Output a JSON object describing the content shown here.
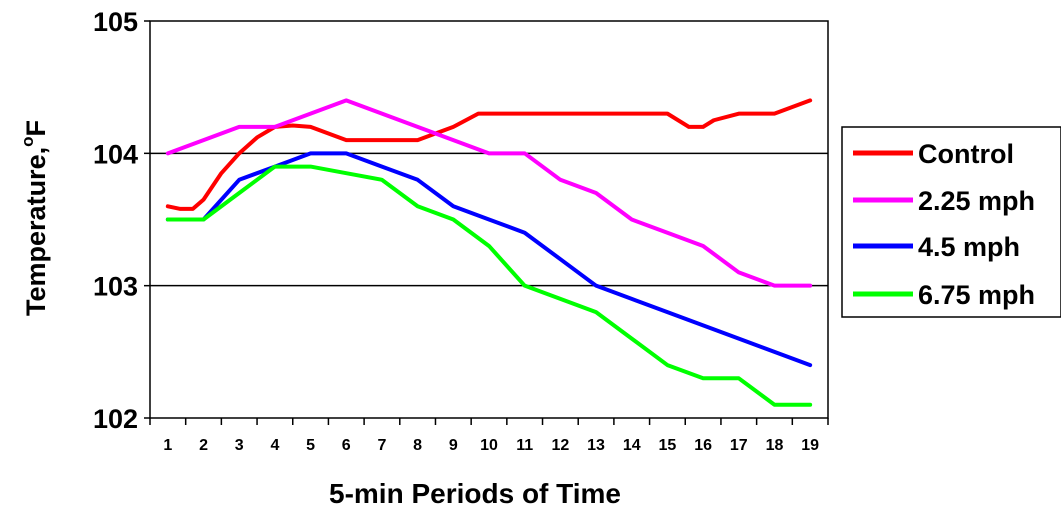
{
  "chart_data": {
    "type": "line",
    "title": "",
    "xlabel": "5-min Periods of Time",
    "ylabel": "Temperature,",
    "ylabel_unit": "F",
    "ylabel_degree": "o",
    "ylim": [
      102,
      105
    ],
    "yticks": [
      "102",
      "103",
      "104",
      "105"
    ],
    "categories": [
      "1",
      "2",
      "3",
      "4",
      "5",
      "6",
      "7",
      "8",
      "9",
      "10",
      "11",
      "12",
      "13",
      "14",
      "15",
      "16",
      "17",
      "18",
      "19"
    ],
    "grid": "horizontal",
    "legend_position": "right",
    "series": [
      {
        "name": "Control",
        "color": "#ff0000",
        "points": [
          [
            1,
            103.6
          ],
          [
            1.35,
            103.58
          ],
          [
            1.7,
            103.58
          ],
          [
            2,
            103.65
          ],
          [
            2.5,
            103.85
          ],
          [
            3,
            104.0
          ],
          [
            3.5,
            104.12
          ],
          [
            4,
            104.2
          ],
          [
            4.5,
            104.21
          ],
          [
            5,
            104.2
          ],
          [
            5.5,
            104.15
          ],
          [
            6,
            104.1
          ],
          [
            7,
            104.1
          ],
          [
            8,
            104.1
          ],
          [
            9,
            104.2
          ],
          [
            9.7,
            104.3
          ],
          [
            10,
            104.3
          ],
          [
            11,
            104.3
          ],
          [
            12,
            104.3
          ],
          [
            13,
            104.3
          ],
          [
            14,
            104.3
          ],
          [
            15,
            104.3
          ],
          [
            15.6,
            104.2
          ],
          [
            16,
            104.2
          ],
          [
            16.3,
            104.25
          ],
          [
            17,
            104.3
          ],
          [
            18,
            104.3
          ],
          [
            19,
            104.4
          ]
        ]
      },
      {
        "name": "2.25 mph",
        "color": "#ff00ff",
        "points": [
          [
            1,
            104.0
          ],
          [
            2,
            104.1
          ],
          [
            3,
            104.2
          ],
          [
            4,
            104.2
          ],
          [
            5,
            104.3
          ],
          [
            6,
            104.4
          ],
          [
            7,
            104.3
          ],
          [
            8,
            104.2
          ],
          [
            9,
            104.1
          ],
          [
            10,
            104.0
          ],
          [
            11,
            104.0
          ],
          [
            12,
            103.8
          ],
          [
            13,
            103.7
          ],
          [
            14,
            103.5
          ],
          [
            15,
            103.4
          ],
          [
            16,
            103.3
          ],
          [
            17,
            103.1
          ],
          [
            18,
            103.0
          ],
          [
            19,
            103.0
          ]
        ]
      },
      {
        "name": "4.5 mph",
        "color": "#0000ff",
        "points": [
          [
            1,
            103.5
          ],
          [
            2,
            103.5
          ],
          [
            3,
            103.8
          ],
          [
            4,
            103.9
          ],
          [
            5,
            104.0
          ],
          [
            6,
            104.0
          ],
          [
            7,
            103.9
          ],
          [
            8,
            103.8
          ],
          [
            9,
            103.6
          ],
          [
            10,
            103.5
          ],
          [
            11,
            103.4
          ],
          [
            12,
            103.2
          ],
          [
            13,
            103.0
          ],
          [
            14,
            102.9
          ],
          [
            15,
            102.8
          ],
          [
            16,
            102.7
          ],
          [
            17,
            102.6
          ],
          [
            18,
            102.5
          ],
          [
            19,
            102.4
          ]
        ]
      },
      {
        "name": "6.75 mph",
        "color": "#00ff00",
        "points": [
          [
            1,
            103.5
          ],
          [
            2,
            103.5
          ],
          [
            3,
            103.7
          ],
          [
            4,
            103.9
          ],
          [
            5,
            103.9
          ],
          [
            6,
            103.85
          ],
          [
            7,
            103.8
          ],
          [
            8,
            103.6
          ],
          [
            9,
            103.5
          ],
          [
            10,
            103.3
          ],
          [
            11,
            103.0
          ],
          [
            12,
            102.9
          ],
          [
            13,
            102.8
          ],
          [
            14,
            102.6
          ],
          [
            15,
            102.4
          ],
          [
            16,
            102.3
          ],
          [
            17,
            102.3
          ],
          [
            18,
            102.1
          ],
          [
            19,
            102.1
          ]
        ]
      }
    ]
  }
}
